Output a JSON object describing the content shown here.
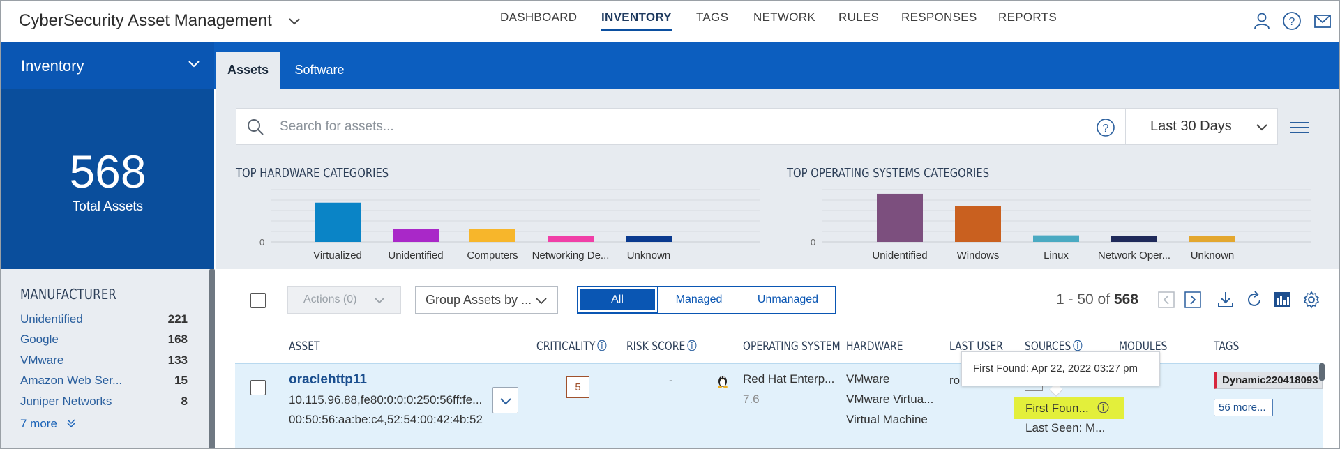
{
  "app": {
    "title": "CyberSecurity Asset Management"
  },
  "nav": {
    "items": [
      {
        "label": "DASHBOARD"
      },
      {
        "label": "INVENTORY",
        "active": true
      },
      {
        "label": "TAGS"
      },
      {
        "label": "NETWORK"
      },
      {
        "label": "RULES"
      },
      {
        "label": "RESPONSES"
      },
      {
        "label": "REPORTS"
      }
    ],
    "icons": [
      "user-icon",
      "help-icon",
      "mail-icon"
    ]
  },
  "sidebar": {
    "title": "Inventory",
    "total": {
      "value": "568",
      "label": "Total Assets"
    },
    "manufacturer": {
      "title": "MANUFACTURER",
      "items": [
        {
          "label": "Unidentified",
          "count": "221"
        },
        {
          "label": "Google",
          "count": "168"
        },
        {
          "label": "VMware",
          "count": "133"
        },
        {
          "label": "Amazon Web Ser...",
          "count": "15"
        },
        {
          "label": "Juniper Networks",
          "count": "8"
        }
      ],
      "more_label": "7 more"
    }
  },
  "tabs": [
    {
      "label": "Assets",
      "active": true
    },
    {
      "label": "Software"
    }
  ],
  "search": {
    "placeholder": "Search for assets...",
    "date_range": "Last 30 Days"
  },
  "chart_data": [
    {
      "type": "bar",
      "title": "TOP HARDWARE CATEGORIES",
      "categories": [
        "Virtualized",
        "Unidentified",
        "Computers",
        "Networking De...",
        "Unknown"
      ],
      "values": [
        180,
        60,
        60,
        28,
        28
      ],
      "colors": [
        "#0a84c6",
        "#a928c8",
        "#f7b62b",
        "#f03fa7",
        "#0a3a8f"
      ],
      "ytick": "0",
      "ylim": [
        0,
        240
      ],
      "grid": true
    },
    {
      "type": "bar",
      "title": "TOP OPERATING SYSTEMS CATEGORIES",
      "categories": [
        "Unidentified",
        "Windows",
        "Linux",
        "Network Oper...",
        "Unknown"
      ],
      "values": [
        221,
        165,
        30,
        28,
        28
      ],
      "colors": [
        "#7c4f7e",
        "#c9601f",
        "#4aaac2",
        "#1f2a5a",
        "#e3a72f"
      ],
      "ytick": "0",
      "ylim": [
        0,
        240
      ],
      "grid": true
    }
  ],
  "toolbar": {
    "actions_label": "Actions (0)",
    "group_label": "Group Assets by ...",
    "segments": [
      {
        "label": "All",
        "active": true
      },
      {
        "label": "Managed"
      },
      {
        "label": "Unmanaged"
      }
    ],
    "pager_range": "1 - 50 of",
    "pager_total": "568"
  },
  "table": {
    "columns": [
      "ASSET",
      "CRITICALITY",
      "RISK SCORE",
      "OPERATING SYSTEM",
      "HARDWARE",
      "LAST USER",
      "SOURCES",
      "MODULES",
      "TAGS"
    ],
    "rows": [
      {
        "name": "oraclehttp11",
        "ip": "10.115.96.88,fe80:0:0:0:250:56ff:fe...",
        "mac": "00:50:56:aa:be:c4,52:54:00:42:4b:52",
        "criticality": "5",
        "risk_score": "-",
        "os_name": "Red Hat Enterp...",
        "os_version": "7.6",
        "hardware": [
          "VMware",
          "VMware Virtua...",
          "Virtual Machine"
        ],
        "last_user": "ro",
        "first_found": "First Foun...",
        "last_seen": "Last Seen: M...",
        "tag": "Dynamic220418093",
        "tags_more": "56 more..."
      }
    ],
    "tooltip": "First Found: Apr 22, 2022 03:27 pm"
  }
}
